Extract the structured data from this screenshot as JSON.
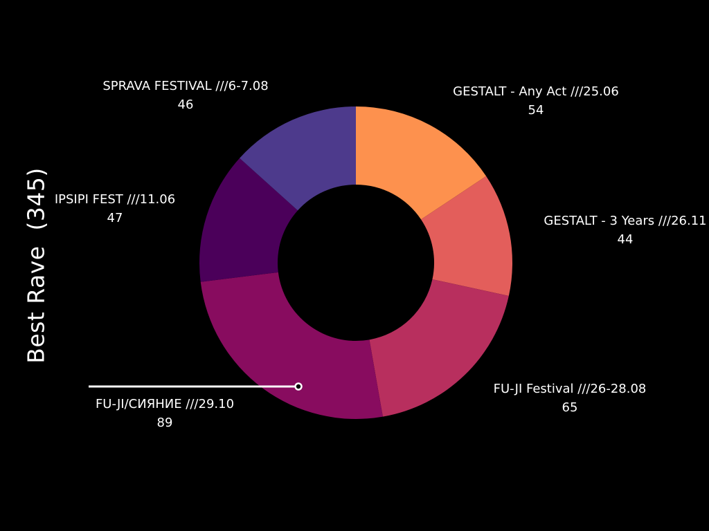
{
  "chart_data": {
    "type": "pie",
    "title": "Best Rave  (345)",
    "donut": true,
    "start_angle_deg": 0,
    "direction": "clockwise",
    "categories": [
      "GESTALT - Any Act ///25.06",
      "GESTALT - 3 Years ///26.11",
      "FU-JI Festival ///26-28.08",
      "FU-JI/СИЯНИЕ  ///29.10",
      "IPSIPI FEST ///11.06",
      "SPRAVA FESTIVAL ///6-7.08"
    ],
    "values": [
      54,
      44,
      65,
      89,
      47,
      46
    ],
    "value_labels": [
      "54",
      "44",
      "65",
      "89",
      "47",
      "46"
    ],
    "colors": [
      "#fd914e",
      "#e35e5b",
      "#b82f5e",
      "#880c5f",
      "#4b005a",
      "#4d3a8c"
    ],
    "highlighted_category": "FU-JI/СИЯНИЕ  ///29.10"
  }
}
